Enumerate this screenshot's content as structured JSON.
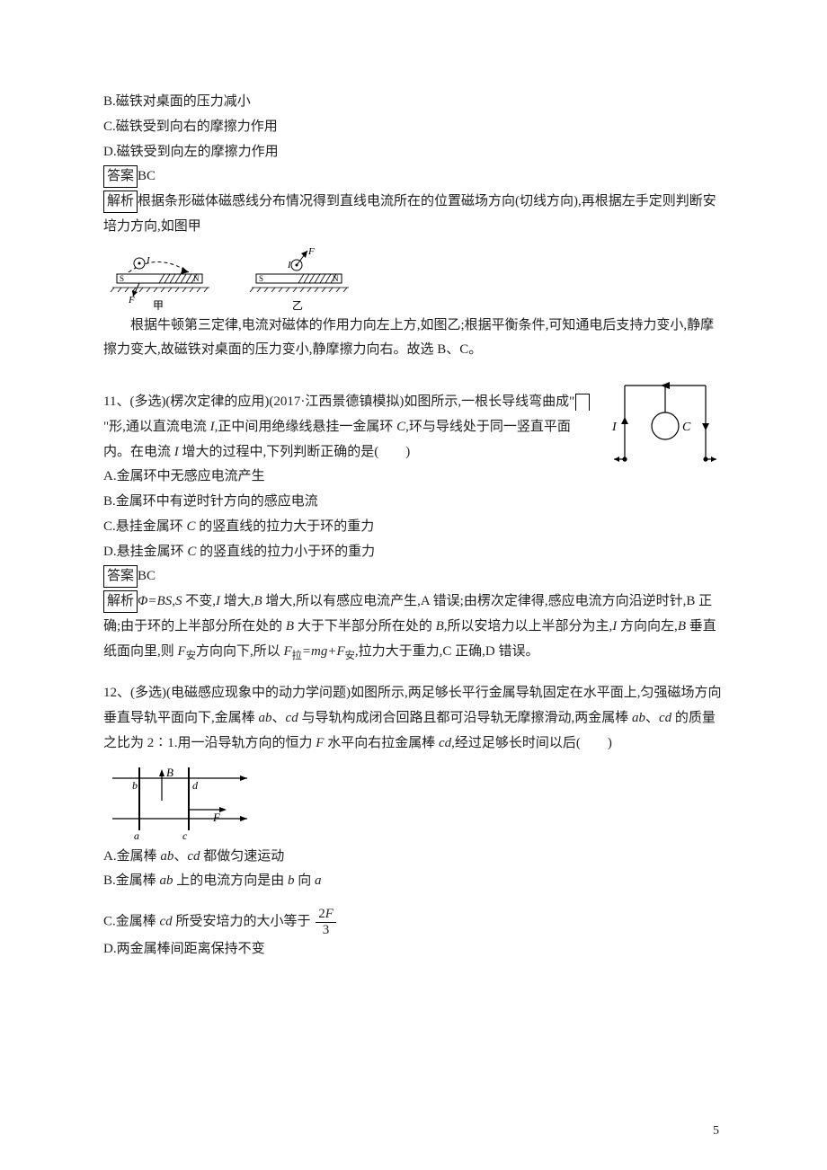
{
  "q10": {
    "opt_b": "B.磁铁对桌面的压力减小",
    "opt_c": "C.磁铁受到向右的摩擦力作用",
    "opt_d": "D.磁铁受到向左的摩擦力作用",
    "ans_label": "答案",
    "ans": "BC",
    "exp_label": "解析",
    "exp_line1": "根据条形磁体磁感线分布情况得到直线电流所在的位置磁场方向(切线方向),再根据左手定则判断安培力方向,如图甲",
    "exp_line2": "根据牛顿第三定律,电流对磁体的作用力向左上方,如图乙;根据平衡条件,可知通电后支持力变小,静摩擦力变大,故磁铁对桌面的压力变小,静摩擦力向右。故选 B、C。",
    "fig": {
      "jia_label": "甲",
      "yi_label": "乙",
      "S": "S",
      "N": "N",
      "I": "I",
      "F": "F",
      "hatch_color": "#000000",
      "line_color": "#000000",
      "dash": "4,3"
    }
  },
  "q11": {
    "stem_pre": "11、(多选)(楞次定律的应用)(2017·江西景德镇模拟)如图",
    "stem_post1": "所示,一根长导线弯曲成\"",
    "stem_post2": "\"形,通以直流电流 ",
    "stem_post3": ",正中间用绝缘线悬挂一金属环 ",
    "stem_post4": ",环与导线处于同一竖直平面内。在电流 ",
    "stem_post5": " 增大的过程中,下列判断正确的是(　　)",
    "I": "I",
    "C": "C",
    "opt_a": "A.金属环中无感应电流产生",
    "opt_b": "B.金属环中有逆时针方向的感应电流",
    "opt_c_pre": "C.悬挂金属环 ",
    "opt_c_post": " 的竖直线的拉力大于环的重力",
    "opt_d_pre": "D.悬挂金属环 ",
    "opt_d_post": " 的竖直线的拉力小于环的重力",
    "ans_label": "答案",
    "ans": "BC",
    "exp_label": "解析",
    "exp_1a": "Φ=BS",
    "exp_1b": ",",
    "exp_1c": "S",
    "exp_1d": " 不变,",
    "exp_1e": "I",
    "exp_1f": " 增大,",
    "exp_1g": "B",
    "exp_1h": " 增大,所以有感应电流产生,A 错误;由楞次定律得,感应电流方向沿逆时针,B 正确;由于环的上半部分所在处的 ",
    "exp_1i": "B",
    "exp_1j": " 大于下半部分所在处的 ",
    "exp_1k": "B",
    "exp_1l": ",所以安培力以上半部分为主,",
    "exp_1m": "I",
    "exp_1n": " 方向向左,",
    "exp_1o": "B",
    "exp_1p": " 垂直纸面向里,则 ",
    "exp_1q": "F",
    "exp_1r": "安",
    "exp_1s": "方向向下,所以 ",
    "exp_1t": "F",
    "exp_1u": "拉",
    "exp_1v": "=mg+F",
    "exp_1w": "安",
    "exp_1x": ",拉力大于重力,C 正确,D 错误。",
    "fig": {
      "I_label": "I",
      "C_label": "C",
      "line_color": "#000000"
    }
  },
  "q12": {
    "stem_1": "12、(多选)(电磁感应现象中的动力学问题)如图所示,两足够长平行金属导轨固定在水平面上,匀强磁场方向垂直导轨平面向下,金属棒 ",
    "ab": "ab",
    "stem_2": "、",
    "cd": "cd",
    "stem_3": " 与导轨构成闭合回路且都可沿导轨无摩擦滑动,两金属棒 ",
    "stem_4": "、",
    "stem_5": " 的质量之比为 2∶1.用一沿导轨方向的恒力 ",
    "F": "F",
    "stem_6": " 水平向右拉金属棒 ",
    "stem_7": ",经过足够长时间以后(　　)",
    "opt_a_pre": "A.金属棒 ",
    "opt_a_mid": "、",
    "opt_a_post": " 都做匀速运动",
    "opt_b_pre": "B.金属棒 ",
    "opt_b_mid": " 上的电流方向是由 ",
    "b": "b",
    "opt_b_mid2": " 向 ",
    "a": "a",
    "opt_c_pre": "C.金属棒 ",
    "opt_c_mid": " 所受安培力的大小等于",
    "frac_num": "2F",
    "frac_den": "3",
    "opt_d": "D.两金属棒间距离保持不变",
    "fig": {
      "B_label": "B",
      "F_label": "F",
      "a_label": "a",
      "b_label": "b",
      "c_label": "c",
      "d_label": "d",
      "line_color": "#000000"
    }
  },
  "page_number": "5"
}
